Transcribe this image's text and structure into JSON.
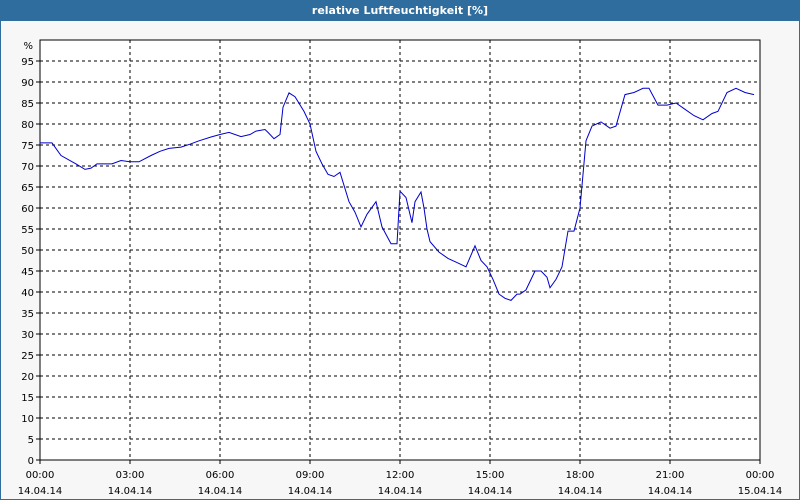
{
  "window": {
    "title": "relative Luftfeuchtigkeit [%]"
  },
  "colors": {
    "title_bar": "#2f6d9e",
    "line": "#0000cc",
    "grid": "#000000",
    "plot_bg": "#ffffff"
  },
  "chart_data": {
    "type": "line",
    "title": "relative Luftfeuchtigkeit [%]",
    "ylabel": "%",
    "xlabel": "",
    "ylim": [
      0,
      100
    ],
    "yticks": [
      0,
      5,
      10,
      15,
      20,
      25,
      30,
      35,
      40,
      45,
      50,
      55,
      60,
      65,
      70,
      75,
      80,
      85,
      90,
      95
    ],
    "xlim_hours": [
      0,
      24
    ],
    "xticks": [
      {
        "hour": 0,
        "time": "00:00",
        "date": "14.04.14"
      },
      {
        "hour": 3,
        "time": "03:00",
        "date": "14.04.14"
      },
      {
        "hour": 6,
        "time": "06:00",
        "date": "14.04.14"
      },
      {
        "hour": 9,
        "time": "09:00",
        "date": "14.04.14"
      },
      {
        "hour": 12,
        "time": "12:00",
        "date": "14.04.14"
      },
      {
        "hour": 15,
        "time": "15:00",
        "date": "14.04.14"
      },
      {
        "hour": 18,
        "time": "18:00",
        "date": "14.04.14"
      },
      {
        "hour": 21,
        "time": "21:00",
        "date": "14.04.14"
      },
      {
        "hour": 24,
        "time": "00:00",
        "date": "15.04.14"
      }
    ],
    "grid": true,
    "series": [
      {
        "x": [
          0.0,
          0.4,
          0.7,
          1.2,
          1.5,
          1.7,
          1.9,
          2.4,
          2.7,
          3.0,
          3.3,
          3.7,
          4.0,
          4.3,
          4.7,
          5.0,
          5.3,
          5.7,
          6.0,
          6.3,
          6.7,
          7.0,
          7.2,
          7.5,
          7.6,
          7.8,
          8.0,
          8.1,
          8.3,
          8.5,
          8.8,
          9.0,
          9.2,
          9.4,
          9.6,
          9.8,
          10.0,
          10.3,
          10.5,
          10.7,
          10.9,
          11.2,
          11.4,
          11.7,
          11.9,
          12.0,
          12.2,
          12.4,
          12.5,
          12.7,
          12.8,
          12.9,
          13.0,
          13.3,
          13.6,
          13.9,
          14.2,
          14.5,
          14.7,
          14.9,
          15.1,
          15.3,
          15.5,
          15.7,
          15.9,
          16.0,
          16.2,
          16.5,
          16.7,
          16.9,
          17.0,
          17.2,
          17.4,
          17.6,
          17.8,
          18.0,
          18.2,
          18.4,
          18.7,
          19.0,
          19.2,
          19.5,
          19.8,
          20.1,
          20.3,
          20.6,
          20.9,
          21.2,
          21.5,
          21.8,
          22.1,
          22.4,
          22.6,
          22.9,
          23.2,
          23.5,
          23.8
        ],
        "y": [
          75.5,
          75.5,
          72.5,
          70.5,
          69.2,
          69.5,
          70.5,
          70.5,
          71.3,
          71.0,
          71.0,
          72.5,
          73.5,
          74.2,
          74.5,
          75.2,
          76.0,
          76.9,
          77.5,
          78.0,
          77.0,
          77.5,
          78.3,
          78.7,
          78.0,
          76.5,
          77.5,
          84.0,
          87.4,
          86.5,
          83.0,
          80.0,
          73.5,
          70.5,
          68.0,
          67.5,
          68.5,
          61.5,
          59.0,
          55.5,
          58.5,
          61.5,
          55.5,
          51.5,
          51.5,
          64.0,
          62.5,
          56.5,
          61.5,
          63.8,
          60.0,
          55.0,
          52.0,
          49.5,
          48.0,
          47.0,
          46.0,
          51.0,
          47.5,
          46.0,
          43.0,
          39.5,
          38.5,
          38.0,
          39.5,
          39.5,
          40.5,
          45.0,
          45.0,
          43.5,
          41.0,
          43.0,
          46.0,
          54.5,
          54.5,
          60.0,
          76.0,
          79.5,
          80.5,
          79.0,
          79.5,
          87.0,
          87.5,
          88.5,
          88.5,
          84.5,
          84.5,
          85.0,
          83.5,
          82.0,
          81.0,
          82.5,
          83.0,
          87.5,
          88.5,
          87.5,
          87.0
        ]
      }
    ]
  }
}
